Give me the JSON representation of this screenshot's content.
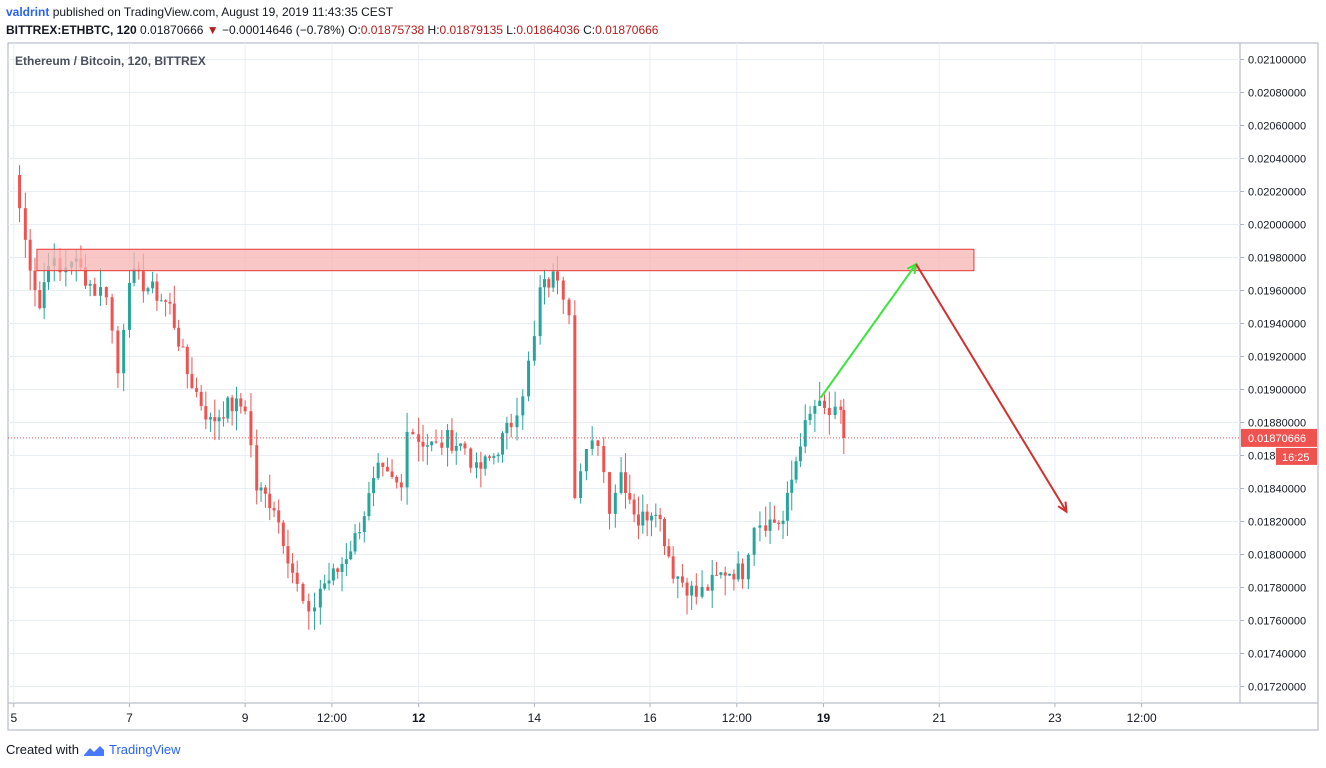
{
  "header": {
    "author": "valdrint",
    "published_text": "published on TradingView.com, August 19, 2019 11:43:35 CEST",
    "symbol": "BITTREX:ETHBTC, 120",
    "last": "0.01870666",
    "change": "−0.00014646 (−0.78%)",
    "o_label": "O:",
    "o_value": "0.01875738",
    "h_label": "H:",
    "h_value": "0.01879135",
    "l_label": "L:",
    "l_value": "0.01864036",
    "c_label": "C:",
    "c_value": "0.01870666"
  },
  "footer": {
    "created_with": "Created with",
    "brand": "TradingView"
  },
  "colors": {
    "up": "#26a69a",
    "down": "#ef5350",
    "resistance_fill": "#f8b4b4",
    "resistance_stroke": "#e53935",
    "projection_up": "#39e639",
    "projection_down": "#d32f2f",
    "price_line": "#ef5350",
    "grid": "#e9eef5"
  },
  "chart_data": {
    "type": "candlestick",
    "title": "Ethereum / Bitcoin, 120, BITTREX",
    "ylim": [
      0.0171,
      0.0211
    ],
    "y_ticks": [
      "0.02100000",
      "0.02080000",
      "0.02060000",
      "0.02040000",
      "0.02020000",
      "0.02000000",
      "0.01980000",
      "0.01960000",
      "0.01940000",
      "0.01920000",
      "0.01900000",
      "0.01880000",
      "0.01860000",
      "0.01840000",
      "0.01820000",
      "0.01800000",
      "0.01780000",
      "0.01760000",
      "0.01740000",
      "0.01720000"
    ],
    "x_ticks": [
      {
        "label": "5",
        "bold": false
      },
      {
        "label": "7",
        "bold": false
      },
      {
        "label": "9",
        "bold": false
      },
      {
        "label": "12:00",
        "bold": false
      },
      {
        "label": "12",
        "bold": true
      },
      {
        "label": "14",
        "bold": false
      },
      {
        "label": "16",
        "bold": false
      },
      {
        "label": "12:00",
        "bold": false
      },
      {
        "label": "19",
        "bold": true
      },
      {
        "label": "21",
        "bold": false
      },
      {
        "label": "23",
        "bold": false
      },
      {
        "label": "12:00",
        "bold": false
      }
    ],
    "x_tick_days": [
      5,
      7,
      9,
      10.5,
      12,
      14,
      16,
      17.5,
      19,
      21,
      23,
      24.5
    ],
    "x_range_days": [
      4.9,
      26.2
    ],
    "price_line": {
      "value": 0.01870666,
      "label": "0.01870666",
      "countdown": "16:25"
    },
    "resistance_zone": {
      "x_start_day": 5.4,
      "x_end_day": 21.6,
      "y_low": 0.01972,
      "y_high": 0.01985
    },
    "projection": [
      {
        "from": [
          18.95,
          0.01895
        ],
        "to": [
          20.6,
          0.01976
        ],
        "direction": "up"
      },
      {
        "from": [
          20.6,
          0.01976
        ],
        "to": [
          23.2,
          0.01826
        ],
        "direction": "down"
      }
    ],
    "anchors": [
      [
        5.0,
        0.0203
      ],
      [
        5.2,
        0.0199
      ],
      [
        5.45,
        0.0195
      ],
      [
        5.6,
        0.0198
      ],
      [
        5.8,
        0.0197
      ],
      [
        6.0,
        0.0198
      ],
      [
        6.4,
        0.0196
      ],
      [
        6.6,
        0.0196
      ],
      [
        6.8,
        0.0191
      ],
      [
        7.0,
        0.0197
      ],
      [
        7.4,
        0.0196
      ],
      [
        7.7,
        0.0195
      ],
      [
        8.0,
        0.0191
      ],
      [
        8.4,
        0.0188
      ],
      [
        8.7,
        0.0189
      ],
      [
        9.0,
        0.0189
      ],
      [
        9.2,
        0.0184
      ],
      [
        9.5,
        0.0183
      ],
      [
        9.9,
        0.0178
      ],
      [
        10.1,
        0.0176
      ],
      [
        10.3,
        0.0178
      ],
      [
        10.6,
        0.0179
      ],
      [
        10.9,
        0.0181
      ],
      [
        11.3,
        0.0185
      ],
      [
        11.7,
        0.0184
      ],
      [
        11.8,
        0.0188
      ],
      [
        12.0,
        0.0187
      ],
      [
        12.3,
        0.01865
      ],
      [
        12.5,
        0.0187
      ],
      [
        12.8,
        0.01865
      ],
      [
        13.0,
        0.0185
      ],
      [
        13.3,
        0.0186
      ],
      [
        13.6,
        0.0188
      ],
      [
        13.8,
        0.019
      ],
      [
        14.0,
        0.0193
      ],
      [
        14.1,
        0.0196
      ],
      [
        14.4,
        0.0197
      ],
      [
        14.6,
        0.0195
      ],
      [
        14.7,
        0.0184
      ],
      [
        14.9,
        0.0186
      ],
      [
        15.1,
        0.0187
      ],
      [
        15.3,
        0.0183
      ],
      [
        15.5,
        0.0185
      ],
      [
        15.8,
        0.0182
      ],
      [
        16.1,
        0.0183
      ],
      [
        16.4,
        0.0179
      ],
      [
        16.8,
        0.01775
      ],
      [
        17.0,
        0.0178
      ],
      [
        17.3,
        0.0179
      ],
      [
        17.6,
        0.0179
      ],
      [
        17.8,
        0.0182
      ],
      [
        18.0,
        0.0182
      ],
      [
        18.3,
        0.0182
      ],
      [
        18.6,
        0.0187
      ],
      [
        18.85,
        0.0189
      ],
      [
        19.1,
        0.01885
      ],
      [
        19.3,
        0.01883
      ],
      [
        19.35,
        0.01870666
      ]
    ]
  }
}
